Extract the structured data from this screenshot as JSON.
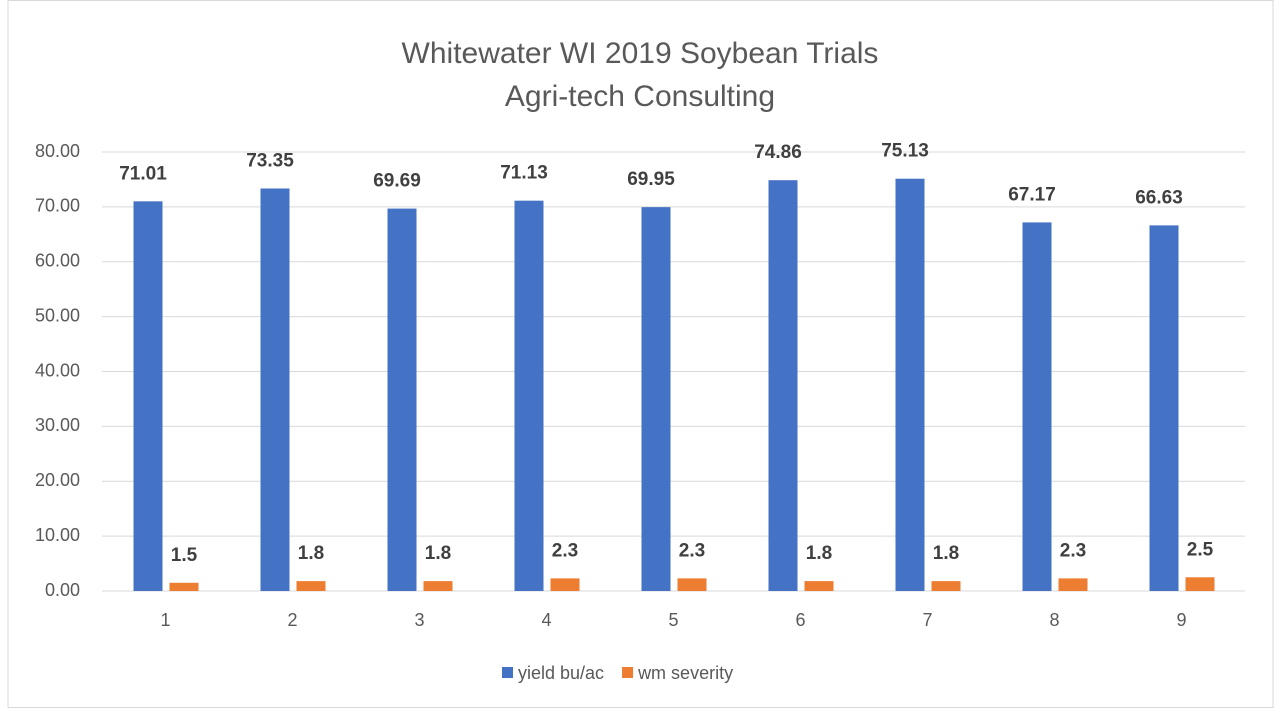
{
  "chart_data": {
    "type": "bar",
    "title": [
      "Whitewater WI 2019 Soybean Trials",
      "Agri-tech Consulting"
    ],
    "categories": [
      "1",
      "2",
      "3",
      "4",
      "5",
      "6",
      "7",
      "8",
      "9"
    ],
    "series": [
      {
        "name": "yield bu/ac",
        "color": "#4472c4",
        "values": [
          71.01,
          73.35,
          69.69,
          71.13,
          69.95,
          74.86,
          75.13,
          67.17,
          66.63
        ]
      },
      {
        "name": "wm severity",
        "color": "#ed7d31",
        "values": [
          1.5,
          1.8,
          1.8,
          2.3,
          2.3,
          1.8,
          1.8,
          2.3,
          2.5
        ]
      }
    ],
    "ylim": [
      0,
      80
    ],
    "yticks": [
      {
        "value": 0,
        "label": "0.00"
      },
      {
        "value": 10,
        "label": "10.00"
      },
      {
        "value": 20,
        "label": "20.00"
      },
      {
        "value": 30,
        "label": "30.00"
      },
      {
        "value": 40,
        "label": "40.00"
      },
      {
        "value": 50,
        "label": "50.00"
      },
      {
        "value": 60,
        "label": "60.00"
      },
      {
        "value": 70,
        "label": "70.00"
      },
      {
        "value": 80,
        "label": "80.00"
      }
    ],
    "grid": true,
    "legend": "bottom"
  }
}
